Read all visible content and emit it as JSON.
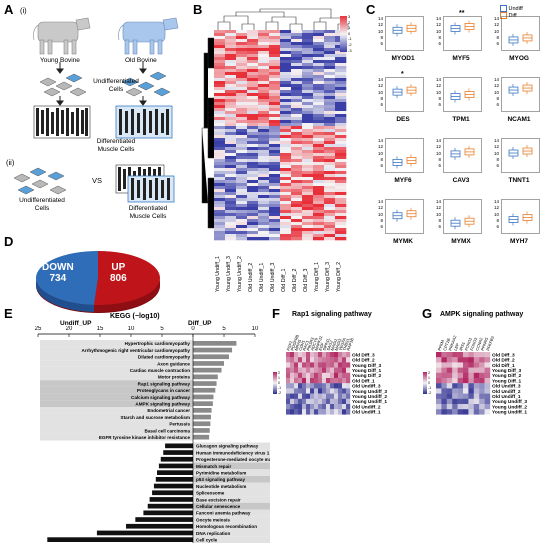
{
  "panels": {
    "A": "A",
    "B": "B",
    "C": "C",
    "D": "D",
    "E": "E",
    "F": "F",
    "G": "G"
  },
  "panel_a": {
    "sub_i": "(i)",
    "sub_ii": "(ii)",
    "young": "Young Bovine",
    "old": "Old Bovine",
    "undiff_cells": "Undifferentiated\nCells",
    "diff_cells": "Differentiated\nMuscle Cells",
    "undiff_cells_ii": "Undifferentiated\nCells",
    "vs": "VS",
    "diff_cells_ii": "Differentiated\nMuscle Cells",
    "colors": {
      "young_cow": "#c9c9c9",
      "old_cow": "#a9c7ec",
      "cell_grey": "#b8b8b8",
      "cell_blue": "#5aa0d8"
    }
  },
  "panel_b": {
    "colorbar_ticks": [
      "3",
      "2",
      "1",
      "0",
      "-1",
      "-2",
      "-3"
    ],
    "columns": [
      "Young Undiff_1",
      "Young Undiff_3",
      "Young Undiff_2",
      "Old Undiff_2",
      "Old Undiff_1",
      "Old Undiff_3",
      "Old Diff_1",
      "Old Diff_2",
      "Old Diff_3",
      "Young Diff_1",
      "Young Diff_3",
      "Young Diff_2"
    ],
    "colors": {
      "high": "#e8303a",
      "low": "#3a3fa8",
      "mid": "#f4f4f6"
    }
  },
  "panel_c": {
    "legend": [
      {
        "label": "Undiff",
        "color": "#3b76c4"
      },
      {
        "label": "Diff",
        "color": "#e87e2a"
      }
    ],
    "genes": [
      {
        "name": "MYOD1",
        "sig": "",
        "ticks": [
          "14",
          "12",
          "10",
          "8",
          "6"
        ]
      },
      {
        "name": "MYF5",
        "sig": "**",
        "ticks": [
          "14",
          "12",
          "10",
          "8",
          "6"
        ]
      },
      {
        "name": "MYOG",
        "sig": "",
        "ticks": [
          "14",
          "12",
          "10",
          "8",
          "6"
        ]
      },
      {
        "name": "DES",
        "sig": "*",
        "ticks": [
          "14",
          "12",
          "10",
          "8",
          "6"
        ]
      },
      {
        "name": "TPM1",
        "sig": "",
        "ticks": [
          "14",
          "12",
          "10",
          "8",
          "6"
        ]
      },
      {
        "name": "NCAM1",
        "sig": "",
        "ticks": [
          "14",
          "12",
          "10",
          "8",
          "6"
        ]
      },
      {
        "name": "MYF6",
        "sig": "",
        "ticks": [
          "14",
          "12",
          "10",
          "8",
          "6"
        ]
      },
      {
        "name": "CAV3",
        "sig": "",
        "ticks": [
          "14",
          "12",
          "10",
          "8",
          "6"
        ]
      },
      {
        "name": "TNNT1",
        "sig": "",
        "ticks": [
          "14",
          "12",
          "10",
          "8",
          "6"
        ]
      },
      {
        "name": "MYMK",
        "sig": "",
        "ticks": [
          "14",
          "12",
          "10",
          "8",
          "6"
        ]
      },
      {
        "name": "MYMX",
        "sig": "",
        "ticks": [
          "14",
          "12",
          "10",
          "8",
          "6"
        ]
      },
      {
        "name": "MYH7",
        "sig": "",
        "ticks": [
          "14",
          "12",
          "10",
          "8",
          "6"
        ]
      }
    ]
  },
  "panel_d": {
    "down_label": "DOWN",
    "down_value": "734",
    "up_label": "UP",
    "up_value": "806",
    "colors": {
      "down": "#2f6db8",
      "up": "#c0141b"
    }
  },
  "chart_data": {
    "type": "bar",
    "title": "KEGG (−log10)",
    "left_label": "Undiff_UP",
    "right_label": "Diff_UP",
    "axis_ticks": [
      "25",
      "20",
      "15",
      "10",
      "5",
      "0",
      "5",
      "10"
    ],
    "diff_up": [
      {
        "name": "Hypertrophic cardiomyopathy",
        "value": 7.0
      },
      {
        "name": "Arrhythmogenic right ventricular cardiomyopathy",
        "value": 6.3
      },
      {
        "name": "Dilated cardiomyopathy",
        "value": 5.8
      },
      {
        "name": "Axon guidance",
        "value": 5.0
      },
      {
        "name": "Cardiac muscle contraction",
        "value": 4.6
      },
      {
        "name": "Motor proteins",
        "value": 4.0
      },
      {
        "name": "Rap1 signaling pathway",
        "value": 3.8
      },
      {
        "name": "Proteoglycans in cancer",
        "value": 3.6
      },
      {
        "name": "Calcium signaling pathway",
        "value": 3.3
      },
      {
        "name": "AMPK signaling pathway",
        "value": 3.2
      },
      {
        "name": "Endometrial cancer",
        "value": 3.0
      },
      {
        "name": "Starch and sucrose metabolism",
        "value": 2.9
      },
      {
        "name": "Pertussis",
        "value": 2.8
      },
      {
        "name": "Basal cell carcinoma",
        "value": 2.7
      },
      {
        "name": "EGFR tyrosine kinase inhibitor resistance",
        "value": 2.6
      }
    ],
    "undiff_up": [
      {
        "name": "Glucagon signaling pathway",
        "value": 4.5
      },
      {
        "name": "Human immunodeficiency virus 1 infection",
        "value": 4.8
      },
      {
        "name": "Progesterone-mediated oocyte maturation",
        "value": 5.2
      },
      {
        "name": "Mismatch repair",
        "value": 5.5
      },
      {
        "name": "Pyrimidine metabolism",
        "value": 5.8
      },
      {
        "name": "p53 signaling pathway",
        "value": 6.0
      },
      {
        "name": "Nucleotide metabolism",
        "value": 6.3
      },
      {
        "name": "Spliceosome",
        "value": 6.6
      },
      {
        "name": "Base excision repair",
        "value": 7.0
      },
      {
        "name": "Cellular senescence",
        "value": 7.3
      },
      {
        "name": "Fanconi anemia pathway",
        "value": 8.0
      },
      {
        "name": "Oocyte meiosis",
        "value": 9.3
      },
      {
        "name": "Homologous recombination",
        "value": 10.8
      },
      {
        "name": "DNA replication",
        "value": 15.5
      },
      {
        "name": "Cell cycle",
        "value": 23.5
      }
    ]
  },
  "panel_f": {
    "title": "Rap1 signaling pathway",
    "genes": [
      "FGF2",
      "PDGFRB",
      "MRAS",
      "CDH1",
      "RAC1",
      "PIK3R3",
      "ADCY9",
      "MAPK11",
      "EGF",
      "SIPA1L",
      "SAG2",
      "MAGI1",
      "MAGI3",
      "VEGFA",
      "THBS1",
      "RAP1B"
    ],
    "rows": [
      "Old Diff_3",
      "Old Diff_2",
      "Young Diff_3",
      "Young Diff_1",
      "Young Diff_2",
      "Old Diff_1",
      "Old Undiff_3",
      "Young Undiff_3",
      "Young Undiff_2",
      "Young Undiff_1",
      "Old Undiff_2",
      "Old Undiff_1"
    ],
    "scale": [
      "2",
      "1",
      "0",
      "-1",
      "-2"
    ]
  },
  "panel_g": {
    "title": "AMPK signaling pathway",
    "genes": [
      "PFKM",
      "CPT1B",
      "PRKAA2",
      "LEP",
      "IRS1",
      "FOXO1",
      "FOXO3",
      "CCNA2",
      "PPARG",
      "PFKFB3"
    ],
    "rows": [
      "Old Diff_3",
      "Old Diff_2",
      "Old Diff_1",
      "Young Diff_3",
      "Young Diff_2",
      "Young Diff_1",
      "Old Undiff_3",
      "Old Undiff_2",
      "Old Undiff_1",
      "Young Undiff_3",
      "Young Undiff_2",
      "Young Undiff_1"
    ],
    "scale": [
      "2",
      "1",
      "0",
      "-1",
      "-2"
    ]
  }
}
